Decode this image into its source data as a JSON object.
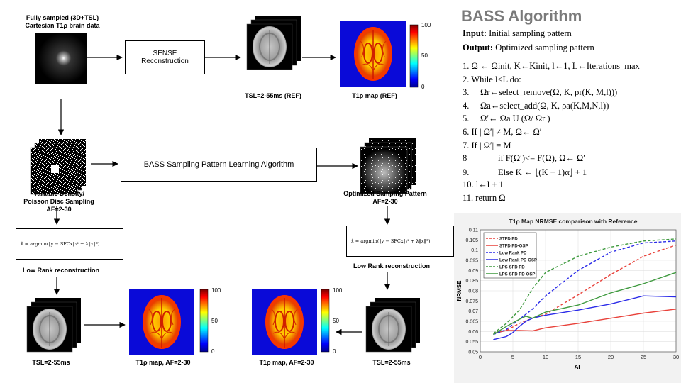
{
  "diagram": {
    "source_label_line1": "Fully sampled (3D+TSL)",
    "source_label_line2": "Cartesian T1ρ brain data",
    "sense_box_line1": "SENSE",
    "sense_box_line2": "Reconstruction",
    "ref_stack_label": "TSL=2-55ms (REF)",
    "ref_map_label": "T1ρ map (REF)",
    "colorbar_ticks_top": [
      "100",
      "50",
      "0"
    ],
    "sampling_label_line1": "Variable Density/",
    "sampling_label_line2": "Poisson Disc Sampling",
    "sampling_label_line3": "AF=2-30",
    "bass_box": "BASS Sampling Pattern Learning Algorithm",
    "optimized_label_line1": "Optimized Samping Pattern",
    "optimized_label_line2": "AF=2-30",
    "lowrank_label_left": "Low Rank reconstruction",
    "lowrank_label_right": "Low Rank reconstruction",
    "bottom_left_stack_label": "TSL=2-55ms",
    "bottom_left_map_label": "T1ρ map, AF=2-30",
    "bottom_right_map_label": "T1ρ map, AF=2-30",
    "bottom_right_stack_label": "TSL=2-55ms",
    "colorbar_ticks_bottom": [
      "100",
      "50",
      "0"
    ]
  },
  "algorithm": {
    "title": "BASS Algorithm",
    "input_key": "Input:",
    "input_val": " Initial sampling pattern",
    "output_key": "Output:",
    "output_val": " Optimized sampling pattern",
    "steps": [
      "1. Ω ← Ωinit, K←Kinit, l←1, L←Iterations_max",
      "2. While l<L do:",
      "3.     Ωr←select_remove(Ω, K, ρr(K, M,l)))",
      "4.     Ωa←select_add(Ω, K, ρa(K,M,N,l))",
      "5.     Ω′← Ωa U (Ω/ Ωr )",
      "6. If | Ω′| ≠ M, Ω← Ω′",
      "7. If | Ω′| = M",
      "8              if F(Ω′)<= F(Ω), Ω← Ω′",
      "9.             Else K ← ⌊(K − 1)α⌋ + 1",
      "10. l←l + 1",
      "11. return Ω"
    ]
  },
  "chart_data": {
    "type": "line",
    "title": "T1ρ Map NRMSE comparison with Reference",
    "xlabel": "AF",
    "ylabel": "NRMSE",
    "xlim": [
      0,
      30
    ],
    "ylim": [
      0.05,
      0.11
    ],
    "xticks": [
      "0",
      "5",
      "10",
      "15",
      "20",
      "25",
      "30"
    ],
    "yticks": [
      "0.05",
      "0.055",
      "0.06",
      "0.065",
      "0.07",
      "0.075",
      "0.08",
      "0.085",
      "0.09",
      "0.095",
      "0.1",
      "0.105",
      "0.11"
    ],
    "legend_position": "top-left",
    "series": [
      {
        "name": "STFD PD",
        "color": "#e8413a",
        "dashed": true,
        "x": [
          2,
          4,
          6,
          8,
          10,
          15,
          20,
          25,
          30
        ],
        "y": [
          0.059,
          0.0605,
          0.064,
          0.0665,
          0.0685,
          0.078,
          0.088,
          0.097,
          0.1025
        ]
      },
      {
        "name": "STFD  PD-OSP",
        "color": "#e8413a",
        "dashed": false,
        "x": [
          2,
          4,
          6,
          8,
          10,
          15,
          20,
          25,
          30
        ],
        "y": [
          0.059,
          0.0605,
          0.0605,
          0.0603,
          0.0618,
          0.064,
          0.0665,
          0.069,
          0.071
        ]
      },
      {
        "name": "Low Rank PD",
        "color": "#2a2ae8",
        "dashed": true,
        "x": [
          2,
          4,
          6,
          8,
          10,
          15,
          20,
          25,
          30
        ],
        "y": [
          0.0585,
          0.061,
          0.066,
          0.071,
          0.0775,
          0.09,
          0.099,
          0.1035,
          0.1045
        ]
      },
      {
        "name": "Low Rank  PD-OSP",
        "color": "#2a2ae8",
        "dashed": false,
        "x": [
          2,
          4,
          5,
          6,
          7,
          8,
          10,
          15,
          20,
          25,
          30
        ],
        "y": [
          0.056,
          0.0575,
          0.0595,
          0.0625,
          0.065,
          0.0665,
          0.068,
          0.0705,
          0.0735,
          0.0775,
          0.077
        ]
      },
      {
        "name": "LPS-SFD PD",
        "color": "#3f9a3f",
        "dashed": true,
        "x": [
          2,
          4,
          6,
          8,
          10,
          15,
          20,
          25,
          30
        ],
        "y": [
          0.059,
          0.064,
          0.0705,
          0.081,
          0.089,
          0.097,
          0.1015,
          0.1045,
          0.1055
        ]
      },
      {
        "name": "LPS-SFD  PD-OSP",
        "color": "#3f9a3f",
        "dashed": false,
        "x": [
          2,
          4,
          6,
          7,
          8,
          10,
          15,
          20,
          25,
          30
        ],
        "y": [
          0.0585,
          0.0625,
          0.066,
          0.0675,
          0.0665,
          0.0695,
          0.073,
          0.079,
          0.0835,
          0.089
        ]
      }
    ]
  }
}
